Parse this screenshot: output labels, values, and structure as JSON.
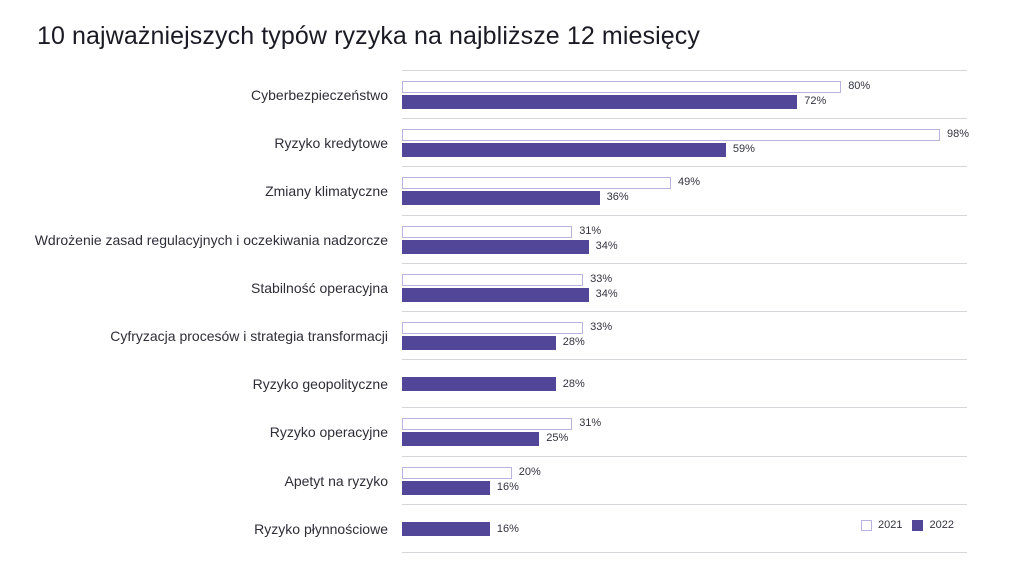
{
  "title": "10 najważniejszych typów ryzyka na najbliższe 12 miesięcy",
  "legend": {
    "s2021": "2021",
    "s2022": "2022"
  },
  "colors": {
    "s2021_fill": "#ffffff",
    "s2021_border": "#b9b3e0",
    "s2022_fill": "#524699",
    "grid": "#d6d6da"
  },
  "rows": [
    {
      "label": "Cyberbezpieczeństwo",
      "v2021": "80%",
      "v2022": "72%"
    },
    {
      "label": "Ryzyko kredytowe",
      "v2021": "98%",
      "v2022": "59%"
    },
    {
      "label": "Zmiany klimatyczne",
      "v2021": "49%",
      "v2022": "36%"
    },
    {
      "label": "Wdrożenie zasad regulacyjnych i oczekiwania nadzorcze",
      "v2021": "31%",
      "v2022": "34%"
    },
    {
      "label": "Stabilność operacyjna",
      "v2021": "33%",
      "v2022": "34%"
    },
    {
      "label": "Cyfryzacja procesów i strategia transformacji",
      "v2021": "33%",
      "v2022": "28%"
    },
    {
      "label": "Ryzyko geopolityczne",
      "v2021": null,
      "v2022": "28%"
    },
    {
      "label": "Ryzyko operacyjne",
      "v2021": "31%",
      "v2022": "25%"
    },
    {
      "label": "Apetyt na ryzyko",
      "v2021": "20%",
      "v2022": "16%"
    },
    {
      "label": "Ryzyko płynnościowe",
      "v2021": null,
      "v2022": "16%"
    }
  ],
  "chart_data": {
    "type": "bar",
    "orientation": "horizontal",
    "title": "10 najważniejszych typów ryzyka na najbliższe 12 miesięcy",
    "categories": [
      "Cyberbezpieczeństwo",
      "Ryzyko kredytowe",
      "Zmiany klimatyczne",
      "Wdrożenie zasad regulacyjnych i oczekiwania nadzorcze",
      "Stabilność operacyjna",
      "Cyfryzacja procesów i strategia transformacji",
      "Ryzyko geopolityczne",
      "Ryzyko operacyjne",
      "Apetyt na ryzyko",
      "Ryzyko płynnościowe"
    ],
    "series": [
      {
        "name": "2021",
        "values": [
          80,
          98,
          49,
          31,
          33,
          33,
          null,
          31,
          20,
          null
        ]
      },
      {
        "name": "2022",
        "values": [
          72,
          59,
          36,
          34,
          34,
          28,
          28,
          25,
          16,
          16
        ]
      }
    ],
    "xlabel": "",
    "ylabel": "",
    "unit": "%",
    "xlim": [
      0,
      100
    ],
    "grid": "horizontal separators between categories",
    "legend_position": "bottom-right",
    "data_labels": true
  }
}
